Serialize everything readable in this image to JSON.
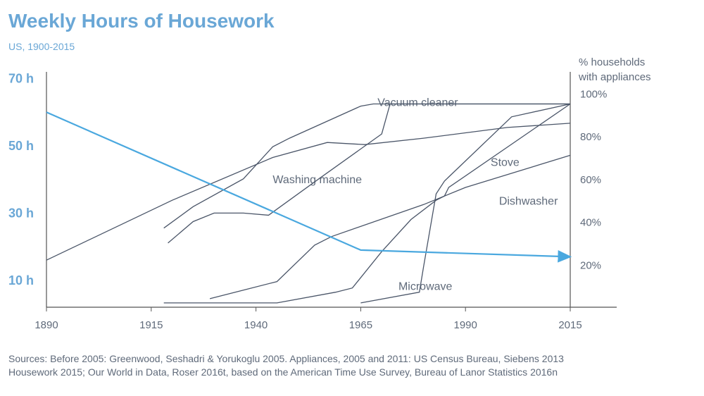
{
  "title": "Weekly Hours of Housework",
  "subtitle": "US, 1900-2015",
  "source_lines": [
    "Sources: Before 2005: Greenwood, Seshadri & Yorukoglu 2005. Appliances, 2005 and 2011: US Census Bureau, Siebens 2013",
    "Housework 2015; Our World in Data, Roser 2016t, based on the American Time Use Survey, Bureau of Lanor Statistics 2016n"
  ],
  "colors": {
    "title": "#6aa7d6",
    "housework": "#4aa8df",
    "appliance": "#4a5568",
    "axis": "#555555",
    "text": "#5f6a7a"
  },
  "chart_data": {
    "type": "line",
    "xlabel": "",
    "ylabel_left": "",
    "ylabel_right": "% households\nwith appliances",
    "x_ticks": [
      1890,
      1915,
      1940,
      1965,
      1990,
      2015
    ],
    "y_left_ticks": [
      "10 h",
      "30 h",
      "50 h",
      "70 h"
    ],
    "y_left_tick_values": [
      10,
      30,
      50,
      70
    ],
    "y_right_ticks": [
      "20%",
      "40%",
      "60%",
      "80%",
      "100%"
    ],
    "y_right_tick_values": [
      20,
      40,
      60,
      80,
      100
    ],
    "xlim": [
      1890,
      2025
    ],
    "ylim_left": [
      2,
      72
    ],
    "ylim_right": [
      0,
      110
    ],
    "grid": false,
    "housework": {
      "axis": "left",
      "points": [
        [
          1890,
          60
        ],
        [
          1965,
          19
        ],
        [
          2015,
          17
        ]
      ]
    },
    "series": [
      {
        "label": "Vacuum cleaner",
        "label_at": [
          1969,
          94
        ],
        "anchor": "start",
        "points": [
          [
            1918,
            37
          ],
          [
            1925,
            47
          ],
          [
            1937,
            60
          ],
          [
            1944,
            75
          ],
          [
            1948,
            79
          ],
          [
            1965,
            94
          ],
          [
            1968,
            95
          ],
          [
            2015,
            95
          ]
        ]
      },
      {
        "label": "Washing machine",
        "label_at": [
          1944,
          58
        ],
        "anchor": "start",
        "points": [
          [
            1890,
            22
          ],
          [
            1920,
            50
          ],
          [
            1944,
            70
          ],
          [
            1957,
            77
          ],
          [
            1966,
            76
          ],
          [
            1980,
            79
          ],
          [
            2000,
            84
          ],
          [
            2015,
            86
          ]
        ]
      },
      {
        "label": "Stove",
        "label_at": [
          1996,
          66
        ],
        "anchor": "start",
        "points": [
          [
            1919,
            30
          ],
          [
            1925,
            40
          ],
          [
            1930,
            44
          ],
          [
            1937,
            44
          ],
          [
            1943,
            43
          ],
          [
            1955,
            60
          ],
          [
            1970,
            81
          ],
          [
            1972,
            95
          ],
          [
            2015,
            95
          ]
        ]
      },
      {
        "label": "Dishwasher",
        "label_at": [
          1998,
          48
        ],
        "anchor": "start",
        "points": [
          [
            1929,
            4
          ],
          [
            1937,
            8
          ],
          [
            1945,
            12
          ],
          [
            1954,
            29
          ],
          [
            1958,
            33
          ],
          [
            1980,
            48
          ],
          [
            1990,
            56
          ],
          [
            2015,
            71
          ]
        ]
      },
      {
        "label": "Microwave",
        "label_at": [
          1974,
          8
        ],
        "anchor": "start",
        "points": [
          [
            1918,
            2
          ],
          [
            1935,
            2
          ],
          [
            1945,
            2
          ],
          [
            1959,
            7
          ],
          [
            1963,
            9
          ],
          [
            1970,
            26
          ],
          [
            1977,
            41
          ],
          [
            1983,
            50
          ],
          [
            1985,
            52
          ],
          [
            1986,
            56
          ],
          [
            2015,
            95
          ]
        ]
      },
      {
        "label": "",
        "label_at": null,
        "anchor": "start",
        "points": [
          [
            1965,
            2
          ],
          [
            1979,
            7
          ],
          [
            1980,
            19
          ],
          [
            1983,
            53
          ],
          [
            1985,
            59
          ],
          [
            2001,
            89
          ],
          [
            2015,
            95
          ]
        ]
      }
    ]
  }
}
